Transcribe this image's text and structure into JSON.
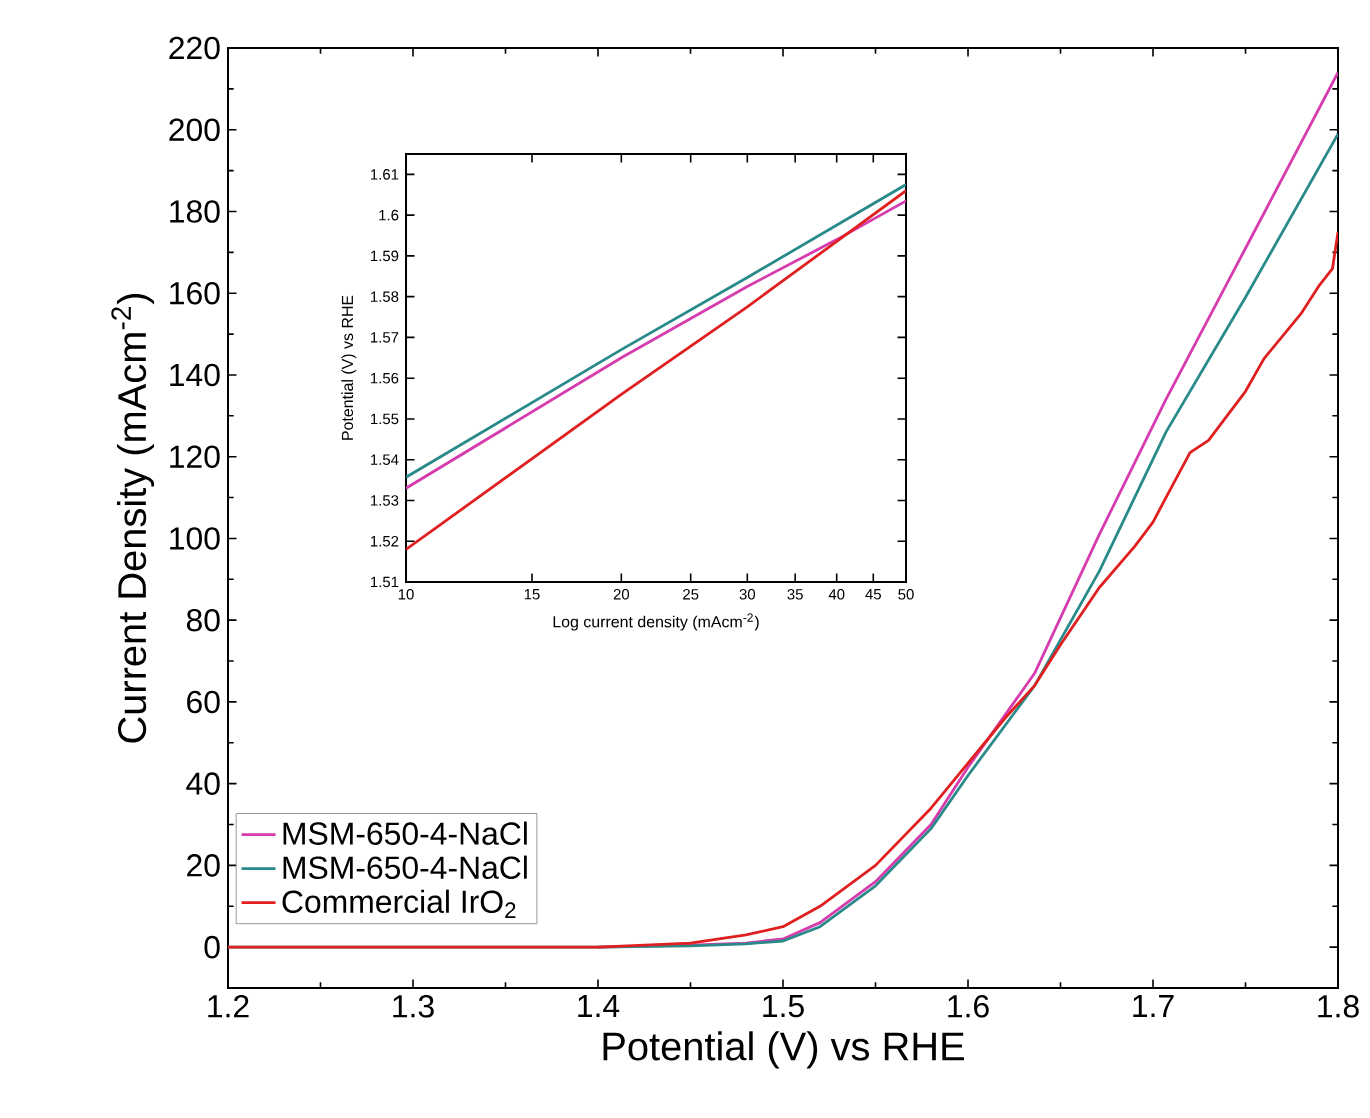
{
  "chart_data": [
    {
      "type": "line",
      "xlabel": "Potential (V) vs RHE",
      "ylabel": "Current Density (mAcm$^{-2}$)",
      "xlim": [
        1.2,
        1.8
      ],
      "ylim": [
        -10,
        220
      ],
      "xticks": [
        1.2,
        1.3,
        1.4,
        1.5,
        1.6,
        1.7,
        1.8
      ],
      "yticks": [
        0,
        20,
        40,
        60,
        80,
        100,
        120,
        140,
        160,
        180,
        200,
        220
      ],
      "legend": "bottom left",
      "series": [
        {
          "name": "MSM-650-4-NaCl",
          "color": "#d63cae",
          "x": [
            1.4,
            1.45,
            1.48,
            1.5,
            1.52,
            1.55,
            1.58,
            1.6,
            1.636,
            1.671,
            1.707,
            1.75,
            1.8
          ],
          "values": [
            0,
            0.5,
            1,
            2,
            6,
            16,
            30,
            44,
            67,
            101,
            134,
            171,
            214
          ]
        },
        {
          "name": "MSM-650-4-NaCl",
          "color": "#2a8a8a",
          "x": [
            1.2,
            1.3,
            1.4,
            1.45,
            1.48,
            1.5,
            1.52,
            1.55,
            1.58,
            1.6,
            1.636,
            1.671,
            1.707,
            1.75,
            1.8
          ],
          "values": [
            0,
            0,
            0,
            0.3,
            0.8,
            1.5,
            5,
            15,
            29,
            42,
            64,
            92,
            126,
            159,
            199
          ]
        },
        {
          "name": "Commercial IrO$_{2}$",
          "color": "#e02020",
          "x": [
            1.2,
            1.3,
            1.4,
            1.45,
            1.48,
            1.5,
            1.52,
            1.55,
            1.58,
            1.6,
            1.62,
            1.636,
            1.65,
            1.671,
            1.69,
            1.7,
            1.707,
            1.72,
            1.73,
            1.75,
            1.76,
            1.78,
            1.79,
            1.797,
            1.8
          ],
          "values": [
            0,
            0,
            0,
            1,
            3,
            5,
            10,
            20,
            34,
            45,
            56,
            64,
            74,
            88,
            98,
            104,
            110,
            121,
            124,
            136,
            144,
            155,
            162,
            166,
            175
          ]
        }
      ]
    },
    {
      "type": "line",
      "xlabel": "Log current density (mAcm$^{-2}$)",
      "ylabel": "Potential (V) vs RHE",
      "log": "x",
      "xlim": [
        10,
        50
      ],
      "ylim": [
        1.51,
        1.615
      ],
      "xticks": [
        10,
        15,
        20,
        25,
        30,
        35,
        40,
        45,
        50
      ],
      "yticks": [
        1.51,
        1.52,
        1.53,
        1.54,
        1.55,
        1.56,
        1.57,
        1.58,
        1.59,
        1.6,
        1.61
      ],
      "series": [
        {
          "color": "#d63cae",
          "x": [
            10,
            20,
            30,
            40,
            50
          ],
          "values": [
            1.533,
            1.565,
            1.5825,
            1.594,
            1.6035
          ]
        },
        {
          "color": "#2a8a8a",
          "x": [
            10,
            20,
            30,
            50
          ],
          "values": [
            1.5357,
            1.567,
            1.5847,
            1.6075
          ]
        },
        {
          "color": "#e02020",
          "x": [
            10,
            20,
            30,
            50
          ],
          "values": [
            1.518,
            1.556,
            1.5775,
            1.606
          ]
        }
      ]
    }
  ]
}
